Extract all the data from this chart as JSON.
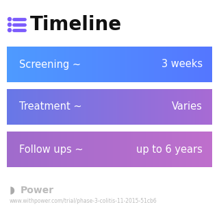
{
  "title": "Timeline",
  "title_fontsize": 20,
  "title_color": "#111111",
  "background_color": "#ffffff",
  "icon_color": "#7c5cfc",
  "rows": [
    {
      "label": "Screening ~",
      "value": "3 weeks",
      "color_left": "#4e9bff",
      "color_right": "#5577ff",
      "text_color": "#ffffff"
    },
    {
      "label": "Treatment ~",
      "value": "Varies",
      "color_left": "#6878e8",
      "color_right": "#a86bd4",
      "text_color": "#ffffff"
    },
    {
      "label": "Follow ups ~",
      "value": "up to 6 years",
      "color_left": "#a06bcc",
      "color_right": "#bf70cc",
      "text_color": "#ffffff"
    }
  ],
  "footer_text": "Power",
  "footer_url": "www.withpower.com/trial/phase-3-colitis-11-2015-51cb6",
  "footer_color": "#bbbbbb",
  "footer_icon_color": "#aaaaaa"
}
